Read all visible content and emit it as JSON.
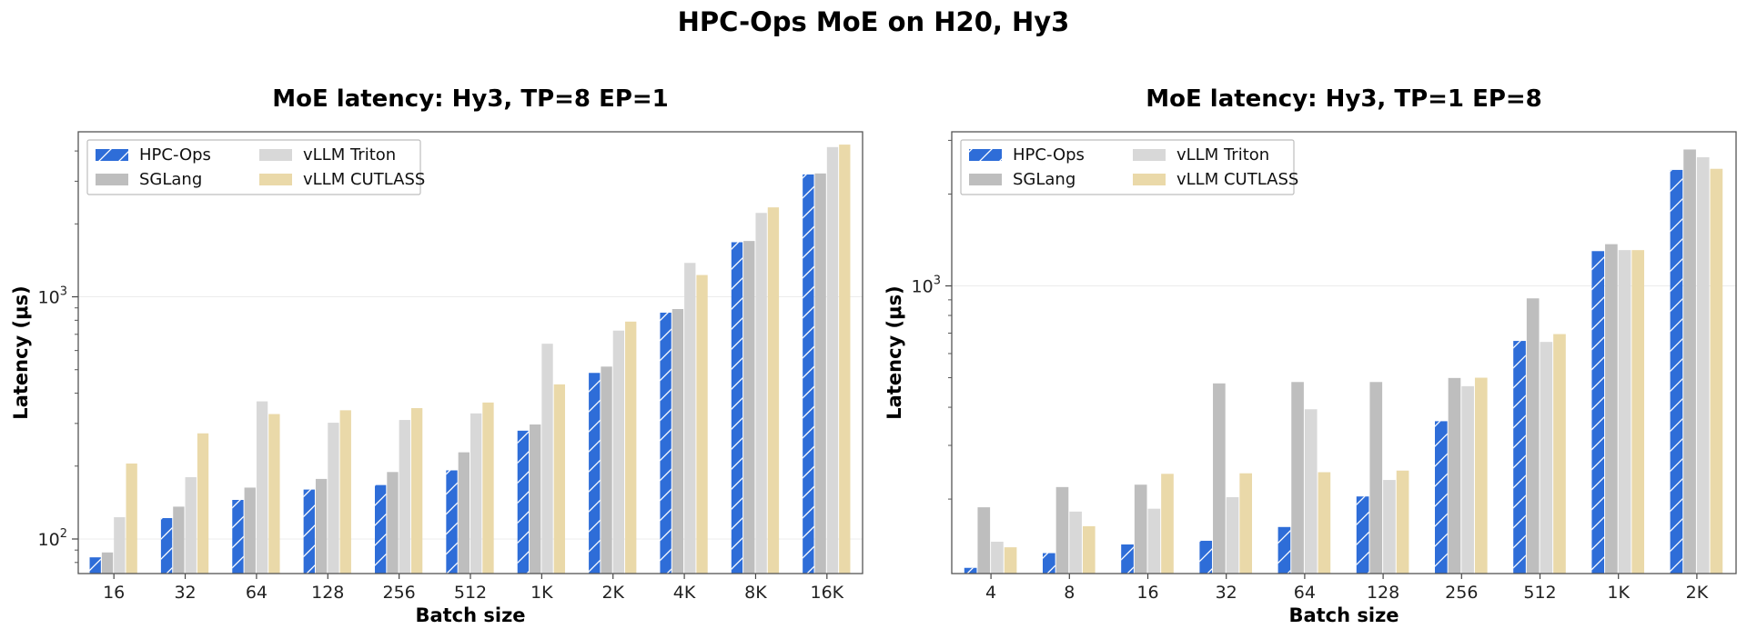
{
  "figure": {
    "title": "HPC-Ops MoE on H20, Hy3"
  },
  "colors": {
    "HPC-Ops": "#2E6DD8",
    "SGLang": "#BEBEBE",
    "vLLM Triton": "#D8D8D8",
    "vLLM CUTLASS": "#EAD9A9"
  },
  "chart_data": [
    {
      "type": "bar",
      "title": "MoE latency: Hy3, TP=8 EP=1",
      "xlabel": "Batch size",
      "ylabel": "Latency (μs)",
      "yscale": "log",
      "ylim": [
        72,
        4800
      ],
      "yticks": [
        {
          "value": 100,
          "base": "10",
          "exp": "2"
        },
        {
          "value": 1000,
          "base": "10",
          "exp": "3"
        }
      ],
      "grid": true,
      "legend": "top-left",
      "categories": [
        "16",
        "32",
        "64",
        "128",
        "256",
        "512",
        "1K",
        "2K",
        "4K",
        "8K",
        "16K"
      ],
      "series": [
        {
          "name": "HPC-Ops",
          "hatch": true,
          "values": [
            84,
            122,
            145,
            160,
            167,
            192,
            280,
            485,
            860,
            1680,
            3200
          ]
        },
        {
          "name": "SGLang",
          "values": [
            88,
            136,
            163,
            177,
            189,
            228,
            297,
            515,
            890,
            1700,
            3230
          ]
        },
        {
          "name": "vLLM Triton",
          "values": [
            123,
            180,
            370,
            302,
            310,
            330,
            640,
            725,
            1380,
            2220,
            4150
          ]
        },
        {
          "name": "vLLM CUTLASS",
          "values": [
            205,
            273,
            328,
            340,
            347,
            366,
            435,
            790,
            1230,
            2340,
            4250
          ]
        }
      ]
    },
    {
      "type": "bar",
      "title": "MoE latency: Hy3, TP=1 EP=8",
      "xlabel": "Batch size",
      "ylabel": "Latency (μs)",
      "yscale": "log",
      "ylim": [
        114,
        3200
      ],
      "yticks": [
        {
          "value": 1000,
          "base": "10",
          "exp": "3"
        }
      ],
      "grid": true,
      "legend": "top-left",
      "categories": [
        "4",
        "8",
        "16",
        "32",
        "64",
        "128",
        "256",
        "512",
        "1K",
        "2K"
      ],
      "series": [
        {
          "name": "HPC-Ops",
          "hatch": true,
          "values": [
            119,
            133,
            142,
            146,
            162,
            204,
            360,
            660,
            1300,
            2400
          ]
        },
        {
          "name": "SGLang",
          "values": [
            188,
            219,
            223,
            479,
            484,
            484,
            499,
            910,
            1370,
            2800
          ]
        },
        {
          "name": "vLLM Triton",
          "values": [
            145,
            182,
            186,
            203,
            394,
            231,
            469,
            655,
            1310,
            2640
          ]
        },
        {
          "name": "vLLM CUTLASS",
          "values": [
            139,
            163,
            242,
            243,
            245,
            248,
            500,
            695,
            1310,
            2420
          ]
        }
      ]
    }
  ]
}
